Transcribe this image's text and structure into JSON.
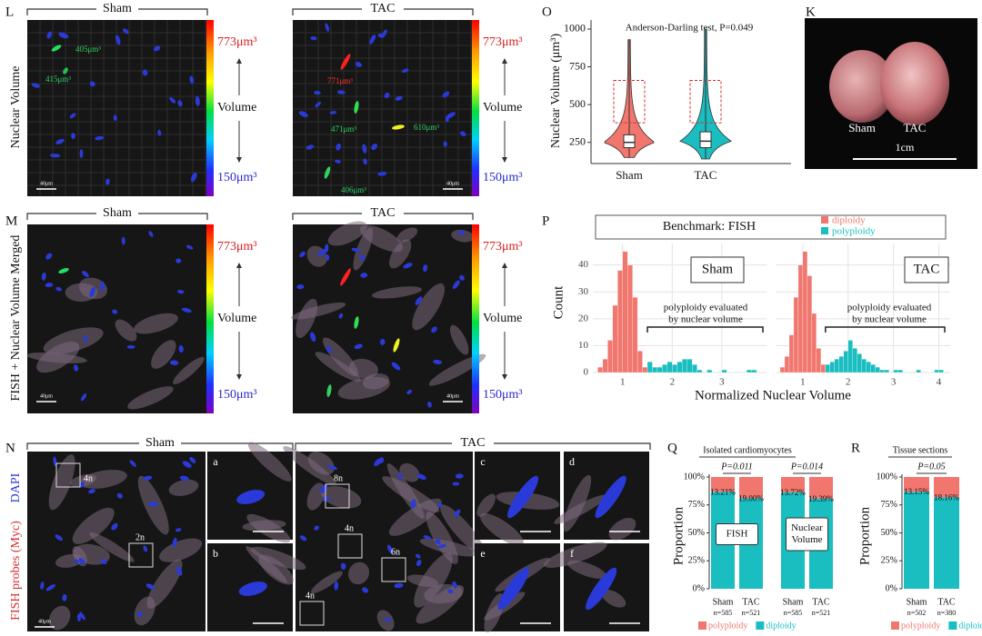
{
  "panel_labels": [
    "L",
    "O",
    "K",
    "M",
    "P",
    "N",
    "Q",
    "R"
  ],
  "panels": {
    "L": {
      "groups": [
        "Sham",
        "TAC"
      ],
      "y_label": "Nuclear Volume",
      "scale_max": "773μm³",
      "scale_name": "Volume",
      "scale_min": "150μm³",
      "scale_bar": "40μm",
      "annotations_sham": [
        "405μm³",
        "415μm³"
      ],
      "annotations_tac": [
        "771μm³",
        "471μm³",
        "610μm³",
        "406μm³"
      ]
    },
    "M": {
      "groups": [
        "Sham",
        "TAC"
      ],
      "y_label": "FISH + Nuclear Volume Merged",
      "scale_max": "773μm³",
      "scale_name": "Volume",
      "scale_min": "150μm³",
      "scale_bar": "40μm"
    },
    "K": {
      "hearts": [
        "Sham",
        "TAC"
      ],
      "scale_bar": "1cm"
    },
    "N": {
      "groups": [
        "Sham",
        "TAC"
      ],
      "y_label_probe": "FISH probes (Myc)",
      "y_label_dapi": "DAPI",
      "insets": [
        "a",
        "b",
        "c",
        "d",
        "e",
        "f"
      ],
      "ploidy": [
        "4n",
        "2n",
        "8n",
        "4n",
        "6n",
        "4n"
      ],
      "scale_bar": "40μm"
    }
  },
  "chart_data": [
    {
      "type": "violin",
      "annotation": "Anderson-Darling test, P=0.049",
      "y_label": "Nuclear Volume (μm³)",
      "categories": [
        "Sham",
        "TAC"
      ],
      "colors": [
        "#F0766E",
        "#1ABDC0"
      ],
      "min": [
        150,
        140
      ],
      "q1": [
        215,
        215
      ],
      "median": [
        250,
        258
      ],
      "q3": [
        300,
        320
      ],
      "max": [
        930,
        1000
      ],
      "highlight": [
        380,
        660
      ],
      "ylim": [
        110,
        1060
      ],
      "yticks": [
        250,
        500,
        750,
        1000
      ]
    },
    {
      "type": "histogram",
      "title": "Benchmark:   FISH",
      "y_label": "Count",
      "x_label": "Normalized Nuclear Volume",
      "ylim": [
        0,
        48
      ],
      "yticks": [
        0,
        10,
        20,
        30,
        40
      ],
      "grid": true,
      "facets": [
        {
          "name": "Sham",
          "xlim": [
            0.4,
            3.9
          ],
          "xticks": [
            1,
            2,
            3
          ],
          "annotation": [
            "polyploidy evaluated",
            "by nuclear volume"
          ],
          "bins": [
            0.5,
            0.6,
            0.7,
            0.8,
            0.9,
            1.0,
            1.1,
            1.2,
            1.3,
            1.4,
            1.5,
            1.6,
            1.7,
            1.8,
            1.9,
            2.0,
            2.1,
            2.2,
            2.3,
            2.4,
            2.5,
            2.6,
            2.7,
            2.8,
            2.9,
            3.0,
            3.1,
            3.2,
            3.3,
            3.4,
            3.5,
            3.6,
            3.7,
            3.8,
            3.9
          ],
          "series": [
            {
              "name": "diploidy",
              "color": "#F0766E",
              "values": [
                2,
                5,
                12,
                25,
                38,
                45,
                40,
                28,
                8,
                2,
                0,
                0,
                0,
                0,
                0,
                0,
                0,
                0,
                0,
                0,
                0,
                0,
                0,
                0,
                0,
                0,
                0,
                0,
                0,
                0,
                0,
                0,
                0,
                0
              ]
            },
            {
              "name": "polyploidy",
              "color": "#1ABDC0",
              "values": [
                0,
                0,
                0,
                0,
                0,
                0,
                0,
                0,
                0,
                0,
                4,
                2,
                2,
                3,
                4,
                3,
                4,
                5,
                5,
                3,
                1,
                0,
                1,
                0,
                0,
                1,
                0,
                0,
                0,
                0,
                1,
                1,
                0,
                0
              ]
            }
          ]
        },
        {
          "name": "TAC",
          "xlim": [
            0.4,
            4.25
          ],
          "xticks": [
            1,
            2,
            3,
            4
          ],
          "annotation": [
            "polyploidy evaluated",
            "by nuclear volume"
          ],
          "bins": [
            0.5,
            0.6,
            0.7,
            0.8,
            0.9,
            1.0,
            1.1,
            1.2,
            1.3,
            1.4,
            1.5,
            1.6,
            1.7,
            1.8,
            1.9,
            2.0,
            2.1,
            2.2,
            2.3,
            2.4,
            2.5,
            2.6,
            2.7,
            2.8,
            2.9,
            3.0,
            3.1,
            3.2,
            3.3,
            3.4,
            3.5,
            3.6,
            3.7,
            3.8,
            3.9,
            4.0,
            4.1,
            4.2
          ],
          "series": [
            {
              "name": "diploidy",
              "color": "#F0766E",
              "values": [
                2,
                6,
                14,
                28,
                40,
                45,
                36,
                22,
                9,
                3,
                0,
                0,
                0,
                0,
                0,
                0,
                0,
                0,
                0,
                0,
                0,
                0,
                0,
                0,
                0,
                0,
                0,
                0,
                0,
                0,
                0,
                0,
                0,
                0,
                0,
                0,
                0
              ]
            },
            {
              "name": "polyploidy",
              "color": "#1ABDC0",
              "values": [
                0,
                0,
                0,
                0,
                0,
                0,
                0,
                0,
                0,
                0,
                3,
                4,
                5,
                6,
                8,
                12,
                9,
                7,
                5,
                4,
                3,
                2,
                1,
                1,
                0,
                1,
                1,
                0,
                0,
                0,
                1,
                0,
                0,
                0,
                1,
                1,
                0
              ]
            }
          ]
        }
      ]
    },
    {
      "type": "stacked_bar",
      "title": "Isolated cardiomyocytes",
      "y_label": "Proportion",
      "categories": [
        "Sham",
        "TAC",
        "Sham",
        "TAC"
      ],
      "n_labels": [
        "n=585",
        "n=521",
        "n=585",
        "n=521"
      ],
      "groups": [
        {
          "label": [
            "FISH"
          ],
          "p": "P=0.011"
        },
        {
          "label": [
            "Nuclear",
            "Volume"
          ],
          "p": "P=0.014"
        }
      ],
      "series": [
        {
          "name": "diploidy",
          "color": "#1ABDC0",
          "values": [
            86.79,
            81.0,
            86.28,
            80.61
          ]
        },
        {
          "name": "polyploidy",
          "color": "#F0766E",
          "values": [
            13.21,
            19.0,
            13.72,
            19.39
          ],
          "value_labels": [
            "13.21%",
            "19.00%",
            "13.72%",
            "19.39%"
          ]
        }
      ],
      "ylim": [
        0,
        100
      ],
      "yticks": [
        {
          "value": 0,
          "label": "0%"
        },
        {
          "value": 25,
          "label": "25%"
        },
        {
          "value": 50,
          "label": "50%"
        },
        {
          "value": 75,
          "label": "75%"
        },
        {
          "value": 100,
          "label": "100%"
        }
      ]
    },
    {
      "type": "stacked_bar",
      "title": "Tissue sections",
      "y_label": "Proportion",
      "categories": [
        "Sham",
        "TAC"
      ],
      "n_labels": [
        "n=502",
        "n=380"
      ],
      "groups": [
        {
          "p": "P=0.05"
        }
      ],
      "series": [
        {
          "name": "diploidy",
          "color": "#1ABDC0",
          "values": [
            86.85,
            81.84
          ]
        },
        {
          "name": "polyploidy",
          "color": "#F0766E",
          "values": [
            13.15,
            18.16
          ],
          "value_labels": [
            "13.15%",
            "18.16%"
          ]
        }
      ],
      "ylim": [
        0,
        100
      ],
      "yticks": [
        {
          "value": 0,
          "label": "0%"
        },
        {
          "value": 25,
          "label": "25%"
        },
        {
          "value": 50,
          "label": "50%"
        },
        {
          "value": 75,
          "label": "75%"
        },
        {
          "value": 100,
          "label": "100%"
        }
      ]
    }
  ]
}
